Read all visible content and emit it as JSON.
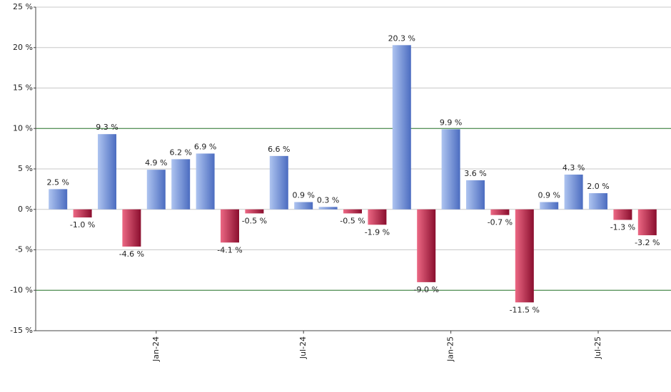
{
  "chart_data": {
    "type": "bar",
    "categories": [
      null,
      null,
      null,
      null,
      "Jan-24",
      null,
      null,
      null,
      null,
      null,
      "Jul-24",
      null,
      null,
      null,
      null,
      null,
      "Jan-25",
      null,
      null,
      null,
      null,
      null,
      "Jul-25",
      null,
      null
    ],
    "values": [
      2.5,
      -1.0,
      9.3,
      -4.6,
      4.9,
      6.2,
      6.9,
      -4.1,
      -0.5,
      6.6,
      0.9,
      0.3,
      -0.5,
      -1.9,
      20.3,
      -9.0,
      9.9,
      3.6,
      -0.7,
      -11.5,
      0.9,
      4.3,
      2.0,
      -1.3,
      -3.2
    ],
    "value_labels": [
      "2.5 %",
      "-1.0 %",
      "9.3 %",
      "-4.6 %",
      "4.9 %",
      "6.2 %",
      "6.9 %",
      "-4.1 %",
      "-0.5 %",
      "6.6 %",
      "0.9 %",
      "0.3 %",
      "-0.5 %",
      "-1.9 %",
      "20.3 %",
      "-9.0 %",
      "9.9 %",
      "3.6 %",
      "-0.7 %",
      "-11.5 %",
      "0.9 %",
      "4.3 %",
      "2.0 %",
      "-1.3 %",
      "-3.2 %"
    ],
    "colors": {
      "positive": [
        "#aec4f0",
        "#4b6cc0"
      ],
      "negative": [
        "#ec6884",
        "#8a0e2e"
      ]
    },
    "ylim": [
      -15,
      25
    ],
    "yticks": [
      {
        "value": -15,
        "label": "-15 %"
      },
      {
        "value": -10,
        "label": "-10 %"
      },
      {
        "value": -5,
        "label": "-5 %"
      },
      {
        "value": 0,
        "label": "0 %"
      },
      {
        "value": 5,
        "label": "5 %"
      },
      {
        "value": 10,
        "label": "10 %"
      },
      {
        "value": 15,
        "label": "15 %"
      },
      {
        "value": 20,
        "label": "20 %"
      },
      {
        "value": 25,
        "label": "25 %"
      }
    ],
    "grid": true,
    "reference_lines": [
      -10,
      10
    ],
    "reference_color": "#2e7d32"
  }
}
